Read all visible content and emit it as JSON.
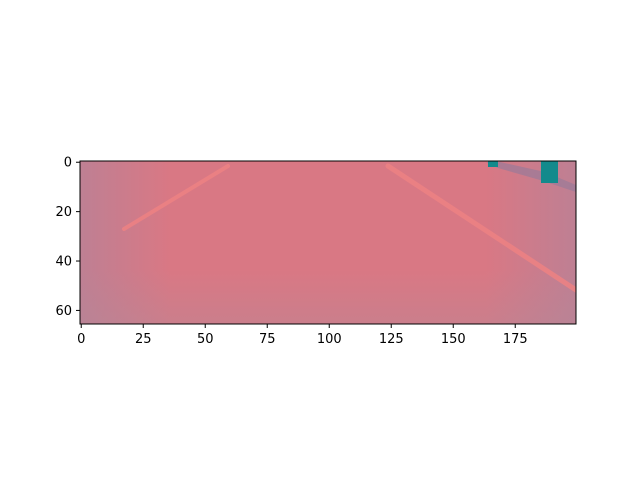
{
  "chart_data": {
    "type": "image",
    "title": "",
    "xlabel": "",
    "ylabel": "",
    "image_size": {
      "width": 200,
      "height": 66
    },
    "xlim": [
      -0.5,
      199.5
    ],
    "ylim": [
      65.5,
      -0.5
    ],
    "x_axis": {
      "ticks": [
        0,
        25,
        50,
        75,
        100,
        125,
        150,
        175
      ],
      "labels": [
        "0",
        "25",
        "50",
        "75",
        "100",
        "125",
        "150",
        "175"
      ]
    },
    "y_axis": {
      "ticks": [
        0,
        20,
        40,
        60
      ],
      "labels": [
        "0",
        "20",
        "40",
        "60"
      ],
      "inverted": true
    },
    "grid": false,
    "colors": {
      "background": "#d97884",
      "edge_tint": "#b7808e",
      "stripe": "#eb7d7f",
      "object": "#138a8c"
    }
  }
}
